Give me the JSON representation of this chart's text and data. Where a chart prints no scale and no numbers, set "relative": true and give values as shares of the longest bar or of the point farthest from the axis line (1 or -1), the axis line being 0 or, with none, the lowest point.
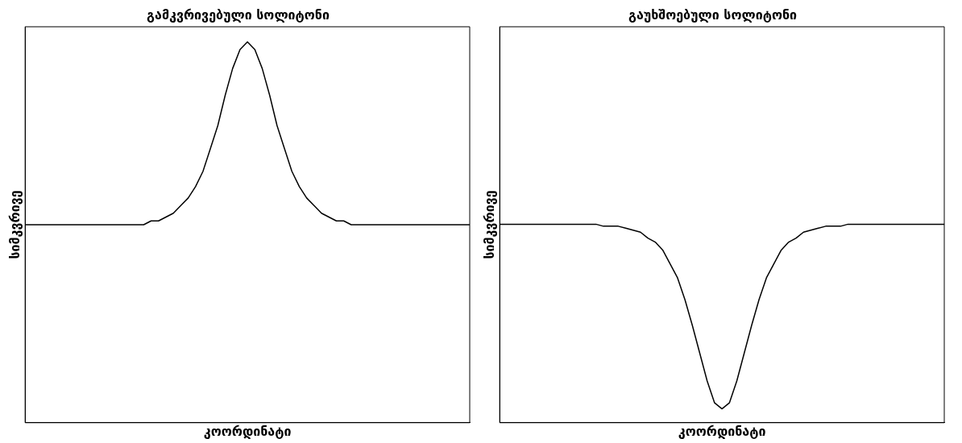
{
  "chart_data": [
    {
      "type": "line",
      "title": "გამკვრივებული სოლიტონი",
      "xlabel": "კოორდინატი",
      "ylabel": "სიმკვრივე",
      "relative": true,
      "marker": "none",
      "grid": false,
      "tick_labels": false,
      "categories": [
        null,
        null,
        null,
        null,
        null,
        null,
        null,
        null,
        null,
        null,
        null,
        null,
        null,
        null,
        null,
        null,
        null,
        null,
        null,
        null,
        null,
        null,
        null,
        null,
        null,
        null,
        null,
        null,
        null,
        null,
        null,
        null,
        null,
        null,
        null,
        null,
        null,
        null,
        null,
        null,
        null,
        null,
        null,
        null,
        null,
        null,
        null,
        null,
        null,
        null,
        null,
        null,
        null,
        null,
        null,
        null,
        null,
        null,
        null,
        null,
        null
      ],
      "series": [
        {
          "color": "#000000",
          "values": [
            0.52,
            0.52,
            0.52,
            0.52,
            0.52,
            0.52,
            0.52,
            0.52,
            0.52,
            0.52,
            0.52,
            0.52,
            0.52,
            0.52,
            0.52,
            0.52,
            0.52,
            0.53,
            0.53,
            0.54,
            0.55,
            0.57,
            0.59,
            0.62,
            0.66,
            0.72,
            0.78,
            0.86,
            0.93,
            0.98,
            1,
            0.98,
            0.93,
            0.86,
            0.78,
            0.72,
            0.66,
            0.62,
            0.59,
            0.57,
            0.55,
            0.54,
            0.53,
            0.53,
            0.52,
            0.52,
            0.52,
            0.52,
            0.52,
            0.52,
            0.52,
            0.52,
            0.52,
            0.52,
            0.52,
            0.52,
            0.52,
            0.52,
            0.52,
            0.52,
            0.52
          ]
        }
      ]
    },
    {
      "type": "line",
      "title": "გაუხშოებული სოლიტონი",
      "xlabel": "კოორდინატი",
      "ylabel": "სიმკვრივე",
      "relative": true,
      "marker": "none",
      "grid": false,
      "tick_labels": false,
      "categories": [
        null,
        null,
        null,
        null,
        null,
        null,
        null,
        null,
        null,
        null,
        null,
        null,
        null,
        null,
        null,
        null,
        null,
        null,
        null,
        null,
        null,
        null,
        null,
        null,
        null,
        null,
        null,
        null,
        null,
        null,
        null,
        null,
        null,
        null,
        null,
        null,
        null,
        null,
        null,
        null,
        null,
        null,
        null,
        null,
        null,
        null,
        null,
        null,
        null,
        null,
        null,
        null,
        null,
        null,
        null,
        null,
        null,
        null,
        null,
        null,
        null
      ],
      "series": [
        {
          "color": "#000000",
          "values": [
            1,
            1,
            1,
            1,
            1,
            1,
            1,
            1,
            1,
            1,
            1,
            1,
            1,
            1,
            0.99,
            0.99,
            0.99,
            0.98,
            0.97,
            0.96,
            0.93,
            0.91,
            0.87,
            0.8,
            0.73,
            0.62,
            0.49,
            0.35,
            0.21,
            0.1,
            0.07,
            0.1,
            0.21,
            0.35,
            0.49,
            0.62,
            0.73,
            0.8,
            0.87,
            0.91,
            0.93,
            0.96,
            0.97,
            0.98,
            0.99,
            0.99,
            0.99,
            1,
            1,
            1,
            1,
            1,
            1,
            1,
            1,
            1,
            1,
            1,
            1,
            1,
            1
          ]
        }
      ]
    }
  ]
}
